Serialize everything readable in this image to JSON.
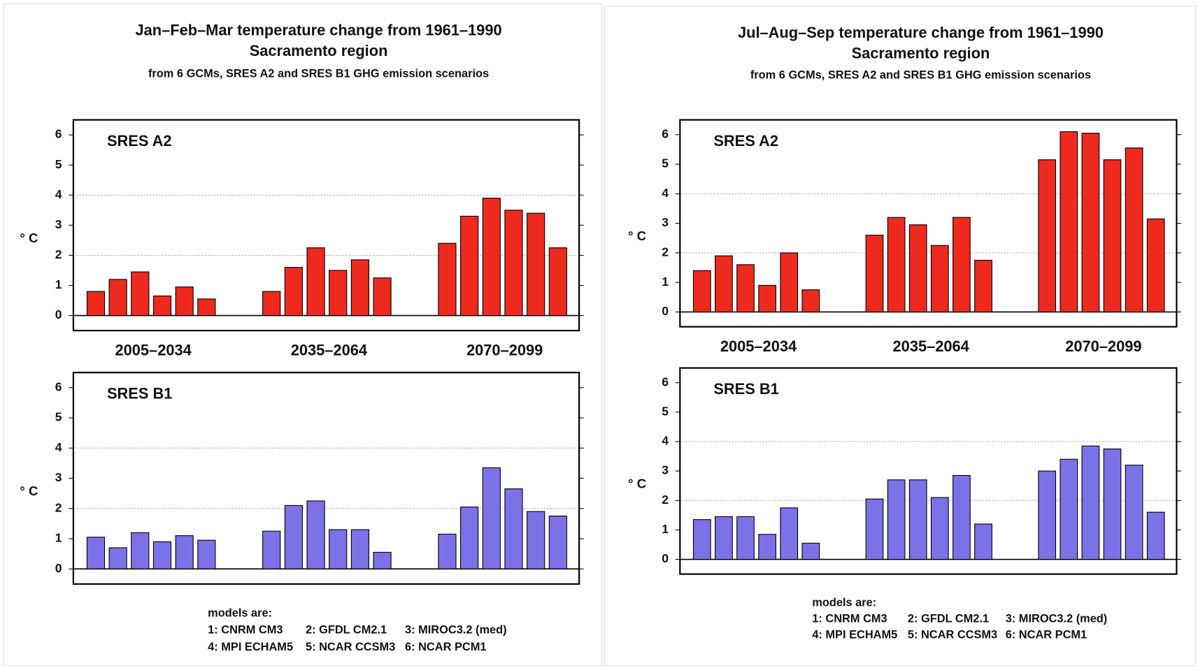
{
  "figures": [
    {
      "title": "Jan–Feb–Mar temperature change from 1961–1990",
      "region": "Sacramento region",
      "subtitle": "from 6 GCMs, SRES A2 and SRES B1 GHG emission scenarios",
      "models_heading": "models are:",
      "models": [
        "1: CNRM CM3",
        "2: GFDL CM2.1",
        "3: MIROC3.2 (med)",
        "4: MPI ECHAM5",
        "5: NCAR CCSM3",
        "6: NCAR PCM1"
      ]
    },
    {
      "title": "Jul–Aug–Sep temperature change from 1961–1990",
      "region": "Sacramento region",
      "subtitle": "from 6 GCMs, SRES A2 and SRES B1 GHG emission scenarios",
      "models_heading": "models are:",
      "models": [
        "1: CNRM CM3",
        "2: GFDL CM2.1",
        "3: MIROC3.2 (med)",
        "4: MPI ECHAM5",
        "5: NCAR CCSM3",
        "6: NCAR PCM1"
      ]
    }
  ],
  "chart_data": [
    {
      "type": "bar",
      "label": "SRES A2",
      "ylabel": "° C",
      "categories": [
        "2005–2034",
        "2035–2064",
        "2070–2099"
      ],
      "series": [
        {
          "color": "#ee2a1f",
          "values": [
            0.8,
            0.8,
            2.4
          ]
        },
        {
          "color": "#ee2a1f",
          "values": [
            1.2,
            1.6,
            3.3
          ]
        },
        {
          "color": "#ee2a1f",
          "values": [
            1.45,
            2.25,
            3.9
          ]
        },
        {
          "color": "#ee2a1f",
          "values": [
            0.65,
            1.5,
            3.5
          ]
        },
        {
          "color": "#ee2a1f",
          "values": [
            0.95,
            1.85,
            3.4
          ]
        },
        {
          "color": "#ee2a1f",
          "values": [
            0.55,
            1.25,
            2.25
          ]
        }
      ],
      "ylim": [
        -0.5,
        6.5
      ],
      "yticks": [
        0,
        1,
        2,
        3,
        4,
        5,
        6
      ],
      "grid_at": [
        2,
        4
      ]
    },
    {
      "type": "bar",
      "label": "SRES B1",
      "ylabel": "° C",
      "categories": [
        null,
        null,
        null
      ],
      "series": [
        {
          "color": "#7b72e8",
          "values": [
            1.05,
            1.25,
            1.15
          ]
        },
        {
          "color": "#7b72e8",
          "values": [
            0.7,
            2.1,
            2.05
          ]
        },
        {
          "color": "#7b72e8",
          "values": [
            1.2,
            2.25,
            3.35
          ]
        },
        {
          "color": "#7b72e8",
          "values": [
            0.9,
            1.3,
            2.65
          ]
        },
        {
          "color": "#7b72e8",
          "values": [
            1.1,
            1.3,
            1.9
          ]
        },
        {
          "color": "#7b72e8",
          "values": [
            0.95,
            0.55,
            1.75
          ]
        }
      ],
      "ylim": [
        -0.5,
        6.5
      ],
      "yticks": [
        0,
        1,
        2,
        3,
        4,
        5,
        6
      ],
      "grid_at": [
        2,
        4
      ]
    },
    {
      "type": "bar",
      "label": "SRES A2",
      "ylabel": "° C",
      "categories": [
        "2005–2034",
        "2035–2064",
        "2070–2099"
      ],
      "series": [
        {
          "color": "#ee2a1f",
          "values": [
            1.4,
            2.6,
            5.15
          ]
        },
        {
          "color": "#ee2a1f",
          "values": [
            1.9,
            3.2,
            6.1
          ]
        },
        {
          "color": "#ee2a1f",
          "values": [
            1.6,
            2.95,
            6.05
          ]
        },
        {
          "color": "#ee2a1f",
          "values": [
            0.9,
            2.25,
            5.15
          ]
        },
        {
          "color": "#ee2a1f",
          "values": [
            2.0,
            3.2,
            5.55
          ]
        },
        {
          "color": "#ee2a1f",
          "values": [
            0.75,
            1.75,
            3.15
          ]
        }
      ],
      "ylim": [
        -0.5,
        6.5
      ],
      "yticks": [
        0,
        1,
        2,
        3,
        4,
        5,
        6
      ],
      "grid_at": [
        2,
        4
      ]
    },
    {
      "type": "bar",
      "label": "SRES B1",
      "ylabel": "° C",
      "categories": [
        null,
        null,
        null
      ],
      "series": [
        {
          "color": "#7b72e8",
          "values": [
            1.35,
            2.05,
            3.0
          ]
        },
        {
          "color": "#7b72e8",
          "values": [
            1.45,
            2.7,
            3.4
          ]
        },
        {
          "color": "#7b72e8",
          "values": [
            1.45,
            2.7,
            3.85
          ]
        },
        {
          "color": "#7b72e8",
          "values": [
            0.85,
            2.1,
            3.75
          ]
        },
        {
          "color": "#7b72e8",
          "values": [
            1.75,
            2.85,
            3.2
          ]
        },
        {
          "color": "#7b72e8",
          "values": [
            0.55,
            1.2,
            1.6
          ]
        }
      ],
      "ylim": [
        -0.5,
        6.5
      ],
      "yticks": [
        0,
        1,
        2,
        3,
        4,
        5,
        6
      ],
      "grid_at": [
        2,
        4
      ]
    }
  ]
}
